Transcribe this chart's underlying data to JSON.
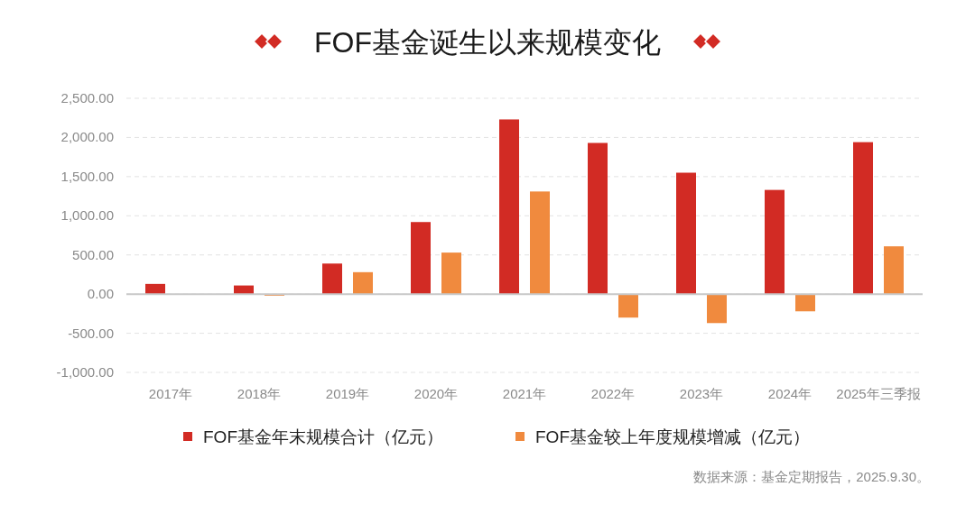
{
  "chart_data": {
    "type": "bar",
    "title": "FOF基金诞生以来规模变化",
    "categories": [
      "2017年",
      "2018年",
      "2019年",
      "2020年",
      "2021年",
      "2022年",
      "2023年",
      "2024年",
      "2025年三季报"
    ],
    "series": [
      {
        "name": "FOF基金年末规模合计（亿元）",
        "color": "#d22b24",
        "values": [
          130,
          110,
          390,
          920,
          2230,
          1930,
          1550,
          1330,
          1940
        ]
      },
      {
        "name": "FOF基金较上年度规模增减（亿元）",
        "color": "#f08a3e",
        "values": [
          null,
          -20,
          280,
          530,
          1310,
          -300,
          -370,
          -220,
          610
        ]
      }
    ],
    "ylim": [
      -1000,
      2500
    ],
    "yticks": [
      {
        "value": -1000,
        "label": "-1,000.00"
      },
      {
        "value": -500,
        "label": "-500.00"
      },
      {
        "value": 0,
        "label": "0.00"
      },
      {
        "value": 500,
        "label": "500.00"
      },
      {
        "value": 1000,
        "label": "1,000.00"
      },
      {
        "value": 1500,
        "label": "1,500.00"
      },
      {
        "value": 2000,
        "label": "2,000.00"
      },
      {
        "value": 2500,
        "label": "2,500.00"
      }
    ],
    "grid": "y",
    "legend": "bottom",
    "annotations": [
      "数据来源：基金定期报告，2025.9.30。"
    ]
  }
}
